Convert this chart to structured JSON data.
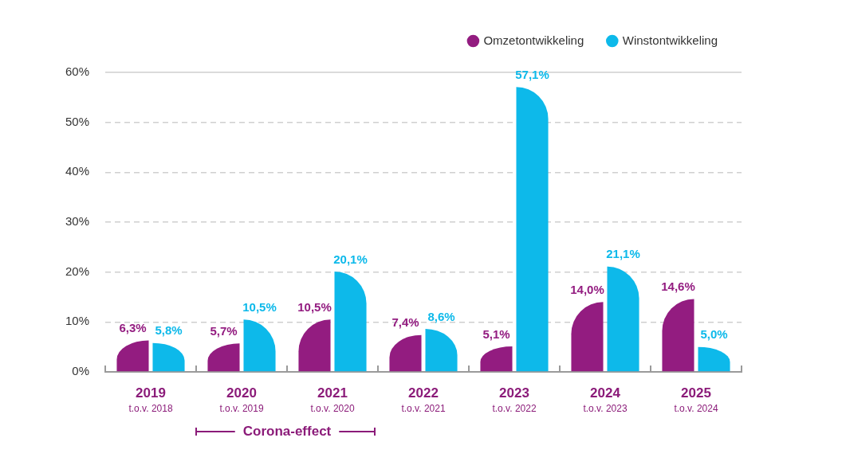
{
  "chart_data": {
    "type": "bar",
    "categories": [
      "2019\nt.o.v. 2018",
      "2020\nt.o.v. 2019",
      "2021\nt.o.v. 2020",
      "2022\nt.o.v. 2021",
      "2023\nt.o.v. 2022",
      "2024\nt.o.v. 2023",
      "2025\nt.o.v. 2024"
    ],
    "series": [
      {
        "name": "Omzetontwikkeling",
        "color": "#931c80",
        "values": [
          6.3,
          5.7,
          10.5,
          7.4,
          5.1,
          14.0,
          14.6
        ],
        "value_labels": [
          "6,3%",
          "5,7%",
          "10,5%",
          "7,4%",
          "5,1%",
          "14,0%",
          "14,6%"
        ]
      },
      {
        "name": "Winstontwikkeling",
        "color": "#0db9ea",
        "values": [
          5.8,
          10.5,
          20.1,
          8.6,
          57.1,
          21.1,
          5.0
        ],
        "value_labels": [
          "5,8%",
          "10,5%",
          "20,1%",
          "8,6%",
          "57,1%",
          "21,1%",
          "5,0%"
        ]
      }
    ],
    "ylim": [
      0,
      60
    ],
    "yticks": [
      {
        "value": 0,
        "label": "0%"
      },
      {
        "value": 10,
        "label": "10%"
      },
      {
        "value": 20,
        "label": "20%"
      },
      {
        "value": 30,
        "label": "30%"
      },
      {
        "value": 40,
        "label": "40%"
      },
      {
        "value": 50,
        "label": "50%"
      },
      {
        "value": 60,
        "label": "60%"
      }
    ],
    "grid": "y",
    "legend": "top right",
    "annotations": [
      "Corona-effect"
    ]
  }
}
